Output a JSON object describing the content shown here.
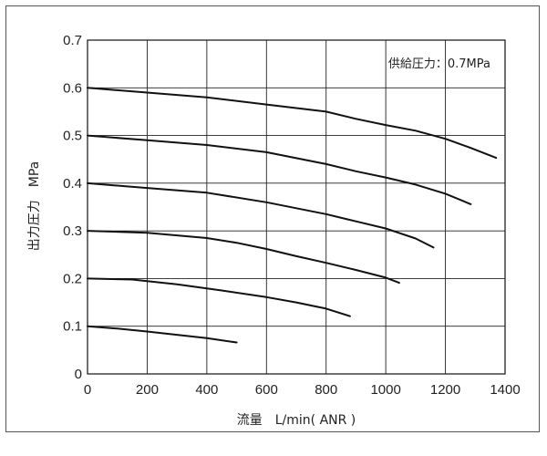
{
  "chart_data": {
    "type": "line",
    "xlabel": "流量　L/min( ANR )",
    "ylabel": "出力圧力　MPa",
    "annotation": "供給圧力：0.7MPa",
    "xlim": [
      0,
      1400
    ],
    "ylim": [
      0,
      0.7
    ],
    "x_ticks": [
      "0",
      "200",
      "400",
      "600",
      "800",
      "1000",
      "1200",
      "1400"
    ],
    "y_ticks": [
      "0",
      "0.1",
      "0.2",
      "0.3",
      "0.4",
      "0.5",
      "0.6",
      "0.7"
    ],
    "grid": true,
    "legend": "none",
    "line_color": "#111111",
    "series": [
      {
        "points": [
          [
            0,
            0.1
          ],
          [
            100,
            0.095
          ],
          [
            200,
            0.089
          ],
          [
            300,
            0.082
          ],
          [
            400,
            0.075
          ],
          [
            500,
            0.066
          ]
        ]
      },
      {
        "points": [
          [
            0,
            0.2
          ],
          [
            150,
            0.198
          ],
          [
            300,
            0.188
          ],
          [
            450,
            0.175
          ],
          [
            600,
            0.161
          ],
          [
            700,
            0.15
          ],
          [
            800,
            0.137
          ],
          [
            880,
            0.121
          ]
        ]
      },
      {
        "points": [
          [
            0,
            0.3
          ],
          [
            200,
            0.296
          ],
          [
            400,
            0.285
          ],
          [
            500,
            0.275
          ],
          [
            600,
            0.262
          ],
          [
            700,
            0.247
          ],
          [
            800,
            0.233
          ],
          [
            900,
            0.218
          ],
          [
            1000,
            0.202
          ],
          [
            1045,
            0.191
          ]
        ]
      },
      {
        "points": [
          [
            0,
            0.4
          ],
          [
            200,
            0.39
          ],
          [
            400,
            0.38
          ],
          [
            600,
            0.36
          ],
          [
            800,
            0.335
          ],
          [
            900,
            0.32
          ],
          [
            1000,
            0.305
          ],
          [
            1100,
            0.284
          ],
          [
            1160,
            0.265
          ]
        ]
      },
      {
        "points": [
          [
            0,
            0.5
          ],
          [
            200,
            0.49
          ],
          [
            400,
            0.48
          ],
          [
            600,
            0.465
          ],
          [
            800,
            0.44
          ],
          [
            900,
            0.425
          ],
          [
            1000,
            0.412
          ],
          [
            1100,
            0.397
          ],
          [
            1200,
            0.378
          ],
          [
            1285,
            0.356
          ]
        ]
      },
      {
        "points": [
          [
            0,
            0.6
          ],
          [
            200,
            0.59
          ],
          [
            400,
            0.58
          ],
          [
            600,
            0.565
          ],
          [
            800,
            0.55
          ],
          [
            900,
            0.535
          ],
          [
            1000,
            0.522
          ],
          [
            1100,
            0.51
          ],
          [
            1200,
            0.493
          ],
          [
            1280,
            0.475
          ],
          [
            1370,
            0.453
          ]
        ]
      }
    ]
  }
}
